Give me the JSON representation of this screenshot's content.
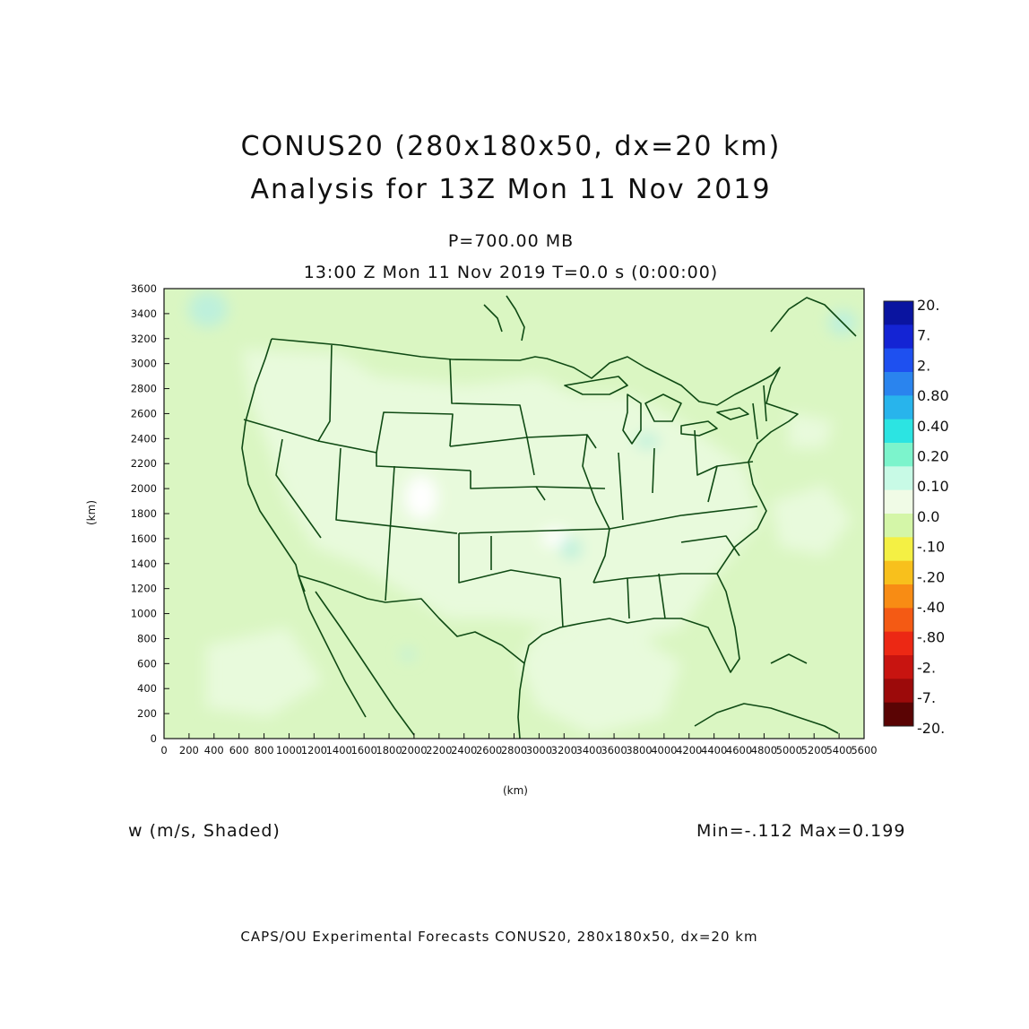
{
  "titles": {
    "line1": "CONUS20 (280x180x50, dx=20 km)",
    "line2": "Analysis for 13Z Mon 11 Nov 2019",
    "level": "P=700.00 MB",
    "time": "13:00 Z Mon 11 Nov 2019    T=0.0 s (0:00:00)"
  },
  "variable_label": "w (m/s, Shaded)",
  "min_max": "Min=-.112 Max=0.199",
  "footer": "CAPS/OU Experimental Forecasts  CONUS20, 280x180x50, dx=20 km",
  "axes": {
    "x_label": "(km)",
    "y_label": "(km)",
    "x_range": [
      0,
      5600
    ],
    "y_range": [
      0,
      3600
    ],
    "x_ticks": [
      "0",
      "200",
      "400",
      "600",
      "800",
      "1000",
      "1200",
      "1400",
      "1600",
      "1800",
      "2000",
      "2200",
      "2400",
      "2600",
      "2800",
      "3000",
      "3200",
      "3400",
      "3600",
      "3800",
      "4000",
      "4200",
      "4400",
      "4600",
      "4800",
      "5000",
      "5200",
      "5400",
      "5600"
    ],
    "y_ticks": [
      "0",
      "200",
      "400",
      "600",
      "800",
      "1000",
      "1200",
      "1400",
      "1600",
      "1800",
      "2000",
      "2200",
      "2400",
      "2600",
      "2800",
      "3000",
      "3200",
      "3400",
      "3600"
    ]
  },
  "colorbar": {
    "labels": [
      "20.",
      "7.",
      "2.",
      "0.80",
      "0.40",
      "0.20",
      "0.10",
      "0.0",
      "-.10",
      "-.20",
      "-.40",
      "-.80",
      "-2.",
      "-7.",
      "-20."
    ],
    "colors": [
      "#0a14a0",
      "#1424d4",
      "#1e50f0",
      "#2a84ee",
      "#28b4ec",
      "#2ce4e2",
      "#7cf4cc",
      "#c8fae6",
      "#f0fbe6",
      "#d4f6a8",
      "#f4f044",
      "#f8c01c",
      "#f88c14",
      "#f45a14",
      "#ec2814",
      "#c81410",
      "#9c0a0a",
      "#5a0404"
    ]
  },
  "map": {
    "background_color": "#daf6c2",
    "light_patch_color": "#e8fadc",
    "white_patch_color": "#ffffff",
    "cyan_patch_color": "#bdf0dc",
    "boundary_color": "#0f4a14"
  }
}
